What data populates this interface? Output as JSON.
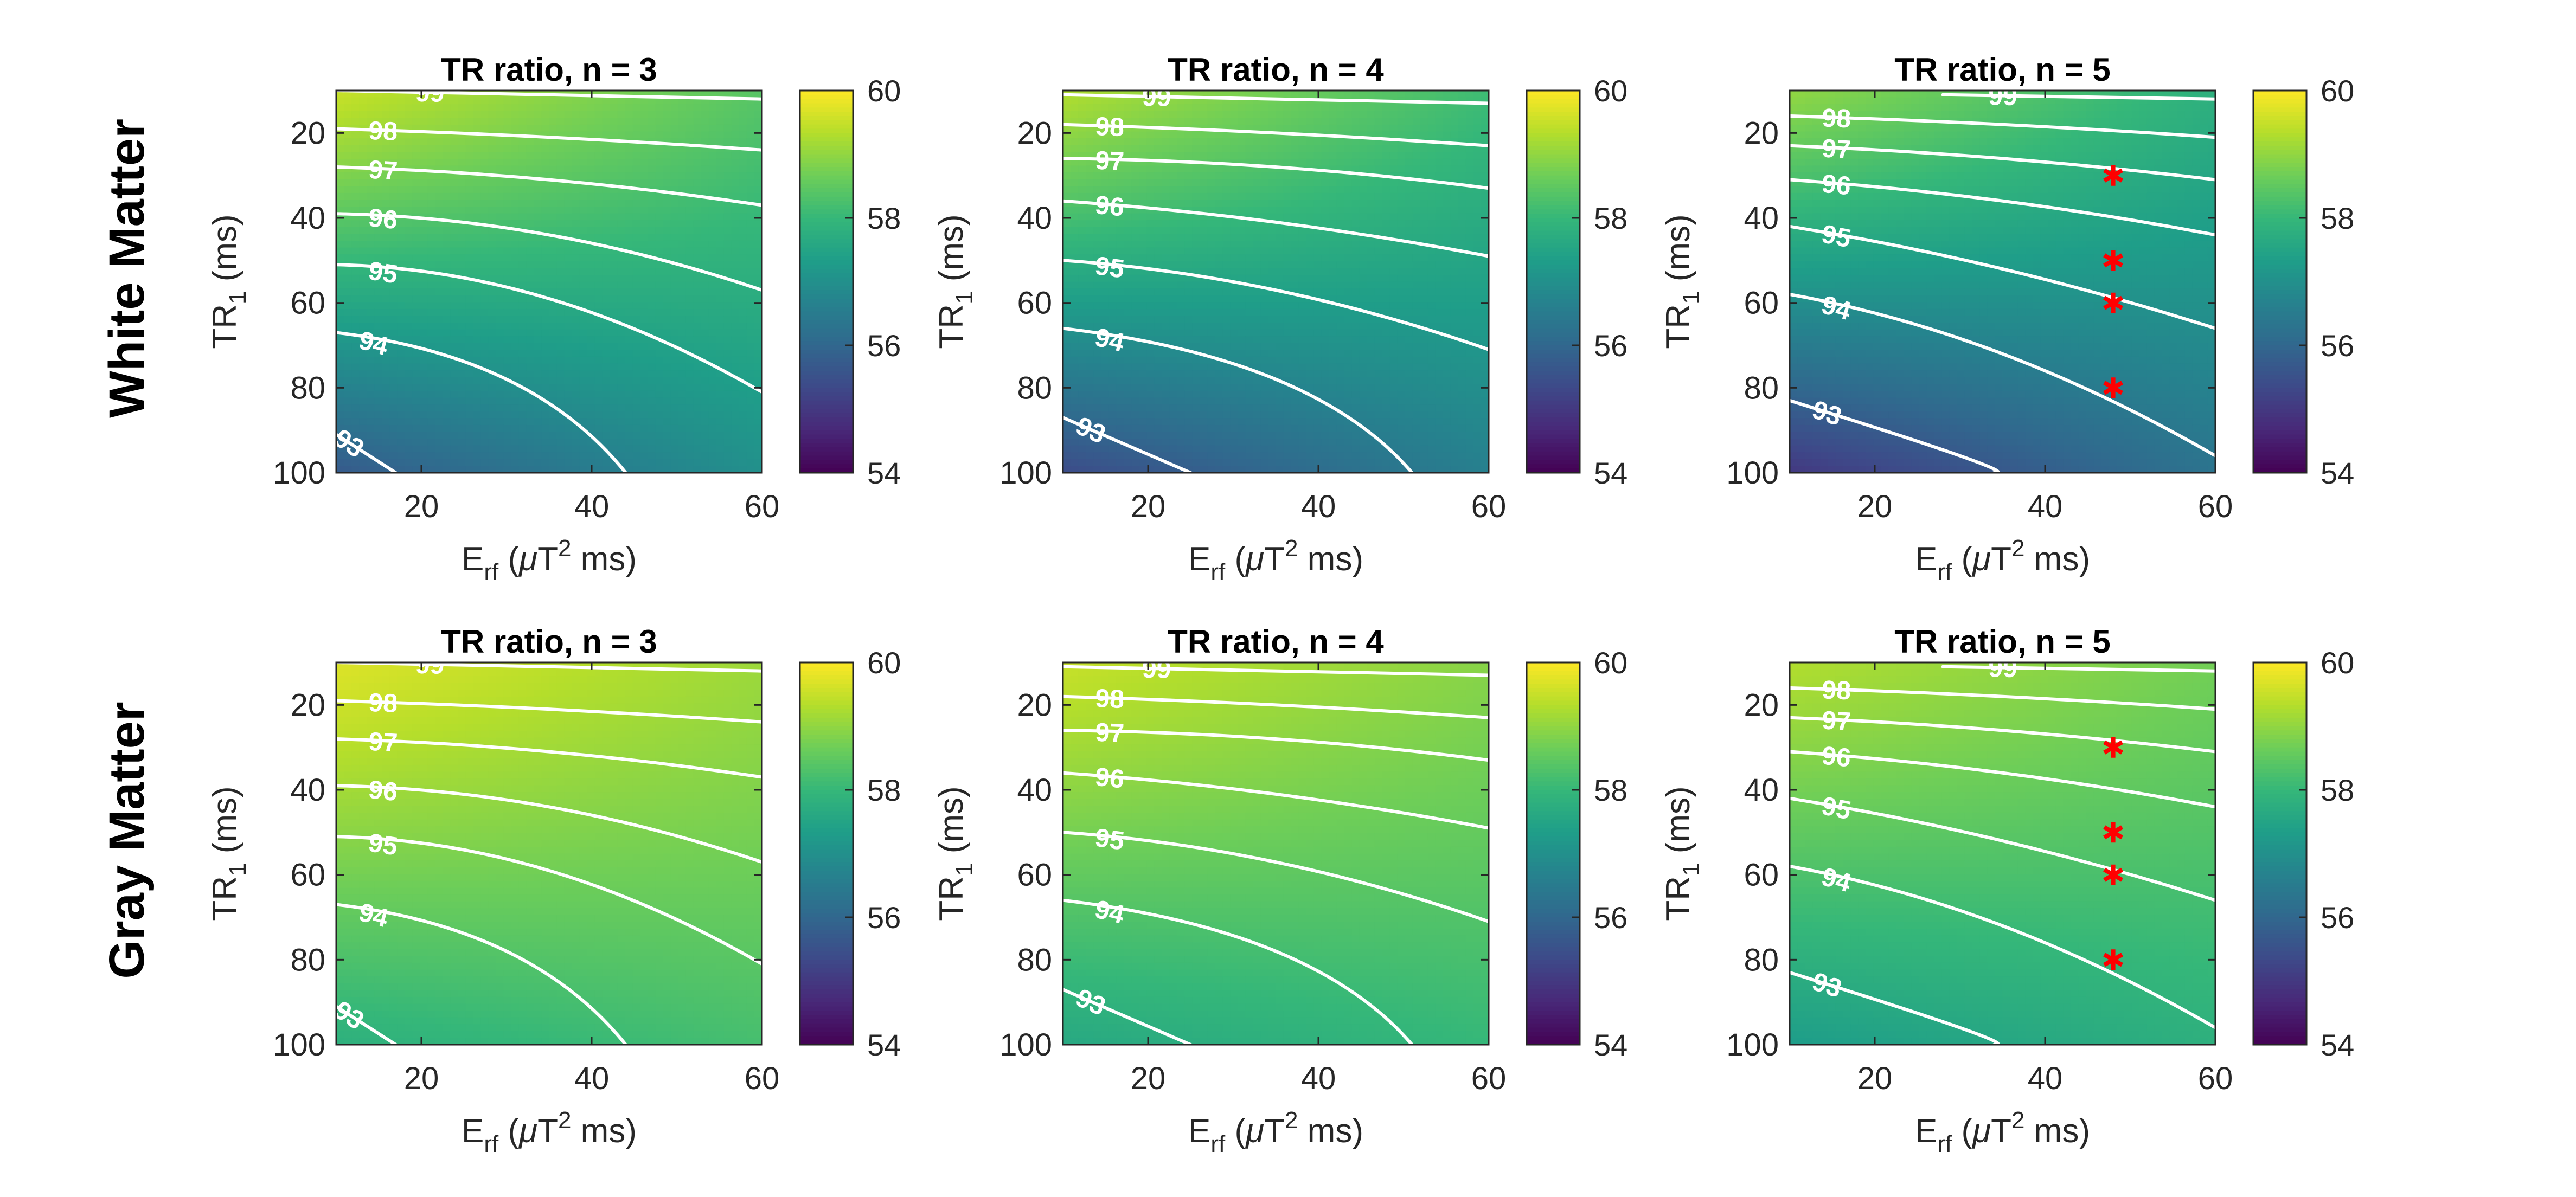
{
  "figure": {
    "row_labels": [
      "White Matter",
      "Gray Matter"
    ],
    "colorbar": {
      "ticks": [
        "54",
        "56",
        "58",
        "60"
      ]
    },
    "colors": {
      "colormap": [
        "#440154",
        "#482878",
        "#3e4989",
        "#31688e",
        "#26828e",
        "#1f9e89",
        "#35b779",
        "#6ece58",
        "#b5de2b",
        "#fde725"
      ],
      "contour": "#ffffff",
      "marker": "#ff0000",
      "axis": "#262626"
    },
    "x_ticks": [
      "20",
      "40",
      "60"
    ],
    "y_ticks": [
      "20",
      "40",
      "60",
      "80",
      "100"
    ],
    "x_axis_label": {
      "base": "E",
      "sub": "rf",
      "middle": " (",
      "mu": "μ",
      "unit": "T",
      "sup": "2",
      "tail": " ms)"
    },
    "y_axis_label": {
      "base": "TR",
      "sub": "1",
      "tail": " (ms)"
    }
  },
  "chart_data": [
    {
      "type": "heatmap",
      "row": "White Matter",
      "n": 3,
      "title": "TR ratio, n = 3",
      "xlim": [
        10,
        60
      ],
      "ylim": [
        100,
        10
      ],
      "clim": [
        54,
        60
      ],
      "xticks": [
        20,
        40,
        60
      ],
      "yticks": [
        20,
        40,
        60,
        80,
        100
      ],
      "colorbar_ticks": [
        54,
        56,
        58,
        60
      ],
      "corner_values": {
        "top_left": 59.5,
        "top_right": 58.4,
        "bottom_left": 55.7,
        "bottom_right": 57.0
      },
      "contour_levels": [
        93,
        94,
        95,
        96,
        97,
        98,
        99
      ],
      "contours": [
        {
          "level": 99,
          "points": [
            [
              10,
              10
            ],
            [
              60,
              12
            ]
          ]
        },
        {
          "level": 98,
          "points": [
            [
              10,
              19
            ],
            [
              35,
              21
            ],
            [
              60,
              24
            ]
          ]
        },
        {
          "level": 97,
          "points": [
            [
              10,
              28
            ],
            [
              35,
              31
            ],
            [
              60,
              37
            ]
          ]
        },
        {
          "level": 96,
          "points": [
            [
              10,
              39
            ],
            [
              35,
              44
            ],
            [
              60,
              57
            ]
          ]
        },
        {
          "level": 95,
          "points": [
            [
              10,
              51
            ],
            [
              35,
              59
            ],
            [
              60,
              81
            ]
          ]
        },
        {
          "level": 94,
          "points": [
            [
              10,
              67
            ],
            [
              30,
              78
            ],
            [
              44,
              100
            ]
          ]
        },
        {
          "level": 93,
          "points": [
            [
              10,
              91
            ],
            [
              17,
              100
            ]
          ]
        }
      ],
      "markers": []
    },
    {
      "type": "heatmap",
      "row": "White Matter",
      "n": 4,
      "title": "TR ratio, n = 4",
      "xlim": [
        10,
        60
      ],
      "ylim": [
        100,
        10
      ],
      "clim": [
        54,
        60
      ],
      "xticks": [
        20,
        40,
        60
      ],
      "yticks": [
        20,
        40,
        60,
        80,
        100
      ],
      "colorbar_ticks": [
        54,
        56,
        58,
        60
      ],
      "corner_values": {
        "top_left": 59.3,
        "top_right": 58.1,
        "bottom_left": 55.4,
        "bottom_right": 56.6
      },
      "contour_levels": [
        93,
        94,
        95,
        96,
        97,
        98,
        99
      ],
      "contours": [
        {
          "level": 99,
          "points": [
            [
              10,
              11
            ],
            [
              60,
              13
            ]
          ]
        },
        {
          "level": 98,
          "points": [
            [
              10,
              18
            ],
            [
              35,
              20
            ],
            [
              60,
              23
            ]
          ]
        },
        {
          "level": 97,
          "points": [
            [
              10,
              26
            ],
            [
              35,
              28
            ],
            [
              60,
              33
            ]
          ]
        },
        {
          "level": 96,
          "points": [
            [
              10,
              36
            ],
            [
              35,
              41
            ],
            [
              60,
              49
            ]
          ]
        },
        {
          "level": 95,
          "points": [
            [
              10,
              50
            ],
            [
              35,
              57
            ],
            [
              60,
              71
            ]
          ]
        },
        {
          "level": 94,
          "points": [
            [
              10,
              66
            ],
            [
              35,
              78
            ],
            [
              51,
              100
            ]
          ]
        },
        {
          "level": 93,
          "points": [
            [
              10,
              87
            ],
            [
              25,
              100
            ]
          ]
        }
      ],
      "markers": []
    },
    {
      "type": "heatmap",
      "row": "White Matter",
      "n": 5,
      "title": "TR ratio, n = 5",
      "xlim": [
        10,
        60
      ],
      "ylim": [
        100,
        10
      ],
      "clim": [
        54,
        60
      ],
      "xticks": [
        20,
        40,
        60
      ],
      "yticks": [
        20,
        40,
        60,
        80,
        100
      ],
      "colorbar_ticks": [
        54,
        56,
        58,
        60
      ],
      "corner_values": {
        "top_left": 59.0,
        "top_right": 57.8,
        "bottom_left": 55.0,
        "bottom_right": 56.3
      },
      "contour_levels": [
        93,
        94,
        95,
        96,
        97,
        98,
        99
      ],
      "contours": [
        {
          "level": 99,
          "points": [
            [
              28,
              11
            ],
            [
              60,
              12
            ]
          ]
        },
        {
          "level": 98,
          "points": [
            [
              10,
              16
            ],
            [
              35,
              18
            ],
            [
              60,
              21
            ]
          ]
        },
        {
          "level": 97,
          "points": [
            [
              10,
              23
            ],
            [
              35,
              26
            ],
            [
              60,
              31
            ]
          ]
        },
        {
          "level": 96,
          "points": [
            [
              10,
              31
            ],
            [
              35,
              36
            ],
            [
              60,
              44
            ]
          ]
        },
        {
          "level": 95,
          "points": [
            [
              10,
              42
            ],
            [
              35,
              52
            ],
            [
              60,
              66
            ]
          ]
        },
        {
          "level": 94,
          "points": [
            [
              10,
              58
            ],
            [
              35,
              72
            ],
            [
              60,
              96
            ]
          ]
        },
        {
          "level": 93,
          "points": [
            [
              10,
              83
            ],
            [
              30,
              96
            ],
            [
              34,
              100
            ]
          ]
        }
      ],
      "markers": [
        [
          48,
          30
        ],
        [
          48,
          50
        ],
        [
          48,
          60
        ],
        [
          48,
          80
        ]
      ]
    },
    {
      "type": "heatmap",
      "row": "Gray Matter",
      "n": 3,
      "title": "TR ratio, n = 3",
      "xlim": [
        10,
        60
      ],
      "ylim": [
        100,
        10
      ],
      "clim": [
        54,
        60
      ],
      "xticks": [
        20,
        40,
        60
      ],
      "yticks": [
        20,
        40,
        60,
        80,
        100
      ],
      "colorbar_ticks": [
        54,
        56,
        58,
        60
      ],
      "corner_values": {
        "top_left": 59.7,
        "top_right": 59.1,
        "bottom_left": 57.8,
        "bottom_right": 58.2
      },
      "contour_levels": [
        93,
        94,
        95,
        96,
        97,
        98,
        99
      ],
      "contours": [
        {
          "level": 99,
          "points": [
            [
              10,
              10
            ],
            [
              60,
              12
            ]
          ]
        },
        {
          "level": 98,
          "points": [
            [
              10,
              19
            ],
            [
              35,
              21
            ],
            [
              60,
              24
            ]
          ]
        },
        {
          "level": 97,
          "points": [
            [
              10,
              28
            ],
            [
              35,
              31
            ],
            [
              60,
              37
            ]
          ]
        },
        {
          "level": 96,
          "points": [
            [
              10,
              39
            ],
            [
              35,
              44
            ],
            [
              60,
              57
            ]
          ]
        },
        {
          "level": 95,
          "points": [
            [
              10,
              51
            ],
            [
              35,
              59
            ],
            [
              60,
              81
            ]
          ]
        },
        {
          "level": 94,
          "points": [
            [
              10,
              67
            ],
            [
              30,
              78
            ],
            [
              44,
              100
            ]
          ]
        },
        {
          "level": 93,
          "points": [
            [
              10,
              91
            ],
            [
              17,
              100
            ]
          ]
        }
      ],
      "markers": []
    },
    {
      "type": "heatmap",
      "row": "Gray Matter",
      "n": 4,
      "title": "TR ratio, n = 4",
      "xlim": [
        10,
        60
      ],
      "ylim": [
        100,
        10
      ],
      "clim": [
        54,
        60
      ],
      "xticks": [
        20,
        40,
        60
      ],
      "yticks": [
        20,
        40,
        60,
        80,
        100
      ],
      "colorbar_ticks": [
        54,
        56,
        58,
        60
      ],
      "corner_values": {
        "top_left": 59.5,
        "top_right": 58.9,
        "bottom_left": 57.6,
        "bottom_right": 58.0
      },
      "contour_levels": [
        93,
        94,
        95,
        96,
        97,
        98,
        99
      ],
      "contours": [
        {
          "level": 99,
          "points": [
            [
              10,
              11
            ],
            [
              60,
              13
            ]
          ]
        },
        {
          "level": 98,
          "points": [
            [
              10,
              18
            ],
            [
              35,
              20
            ],
            [
              60,
              23
            ]
          ]
        },
        {
          "level": 97,
          "points": [
            [
              10,
              26
            ],
            [
              35,
              28
            ],
            [
              60,
              33
            ]
          ]
        },
        {
          "level": 96,
          "points": [
            [
              10,
              36
            ],
            [
              35,
              41
            ],
            [
              60,
              49
            ]
          ]
        },
        {
          "level": 95,
          "points": [
            [
              10,
              50
            ],
            [
              35,
              57
            ],
            [
              60,
              71
            ]
          ]
        },
        {
          "level": 94,
          "points": [
            [
              10,
              66
            ],
            [
              35,
              78
            ],
            [
              51,
              100
            ]
          ]
        },
        {
          "level": 93,
          "points": [
            [
              10,
              87
            ],
            [
              25,
              100
            ]
          ]
        }
      ],
      "markers": []
    },
    {
      "type": "heatmap",
      "row": "Gray Matter",
      "n": 5,
      "title": "TR ratio, n = 5",
      "xlim": [
        10,
        60
      ],
      "ylim": [
        100,
        10
      ],
      "clim": [
        54,
        60
      ],
      "xticks": [
        20,
        40,
        60
      ],
      "yticks": [
        20,
        40,
        60,
        80,
        100
      ],
      "colorbar_ticks": [
        54,
        56,
        58,
        60
      ],
      "corner_values": {
        "top_left": 59.3,
        "top_right": 58.7,
        "bottom_left": 57.3,
        "bottom_right": 57.8
      },
      "contour_levels": [
        93,
        94,
        95,
        96,
        97,
        98,
        99
      ],
      "contours": [
        {
          "level": 99,
          "points": [
            [
              28,
              11
            ],
            [
              60,
              12
            ]
          ]
        },
        {
          "level": 98,
          "points": [
            [
              10,
              16
            ],
            [
              35,
              18
            ],
            [
              60,
              21
            ]
          ]
        },
        {
          "level": 97,
          "points": [
            [
              10,
              23
            ],
            [
              35,
              26
            ],
            [
              60,
              31
            ]
          ]
        },
        {
          "level": 96,
          "points": [
            [
              10,
              31
            ],
            [
              35,
              36
            ],
            [
              60,
              44
            ]
          ]
        },
        {
          "level": 95,
          "points": [
            [
              10,
              42
            ],
            [
              35,
              52
            ],
            [
              60,
              66
            ]
          ]
        },
        {
          "level": 94,
          "points": [
            [
              10,
              58
            ],
            [
              35,
              72
            ],
            [
              60,
              96
            ]
          ]
        },
        {
          "level": 93,
          "points": [
            [
              10,
              83
            ],
            [
              30,
              96
            ],
            [
              34,
              100
            ]
          ]
        }
      ],
      "markers": [
        [
          48,
          30
        ],
        [
          48,
          50
        ],
        [
          48,
          60
        ],
        [
          48,
          80
        ]
      ]
    }
  ]
}
